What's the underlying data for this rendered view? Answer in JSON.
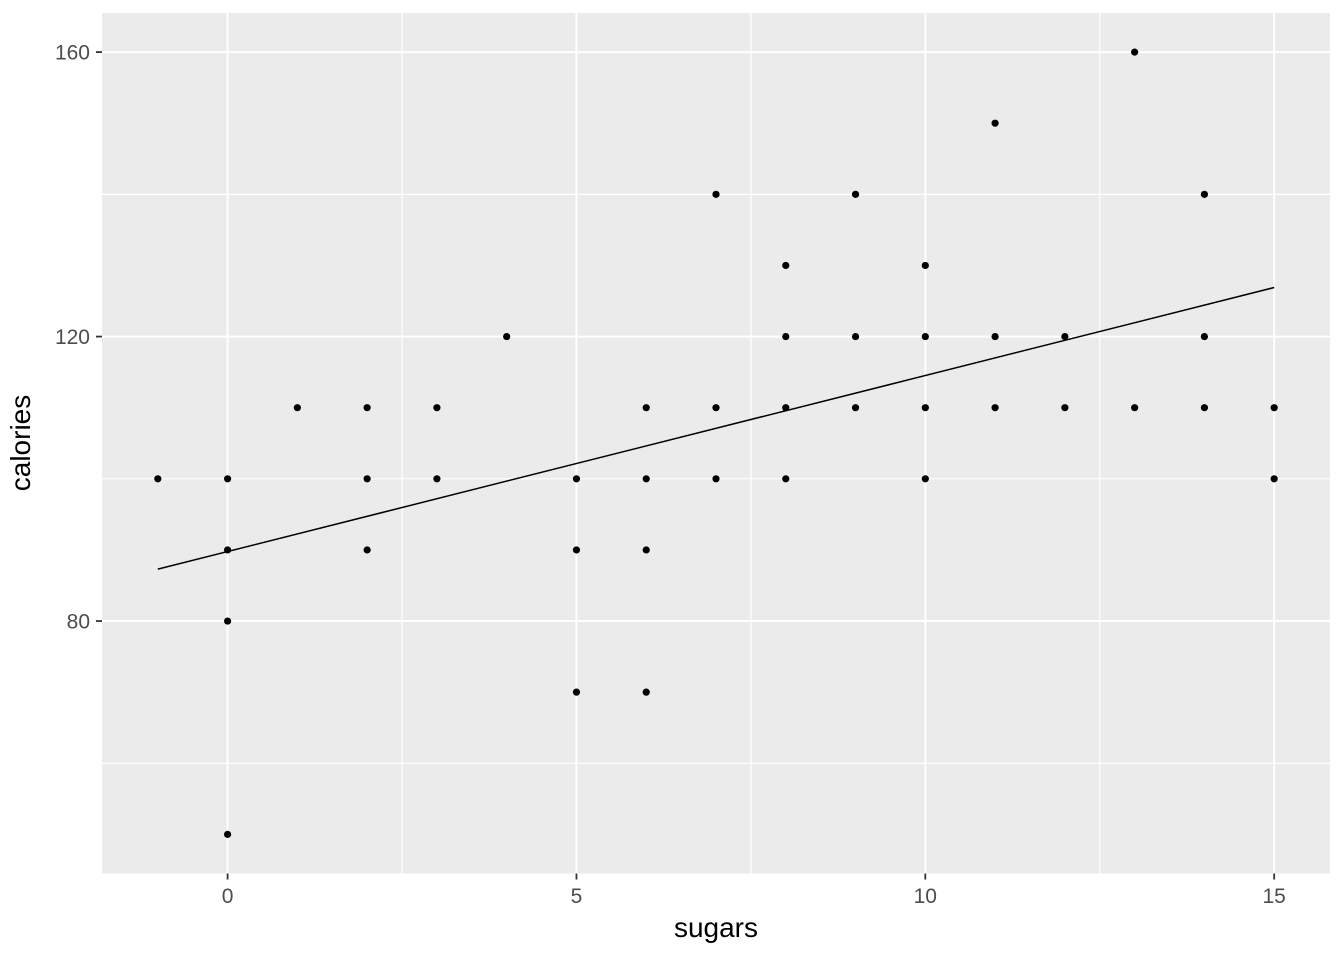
{
  "chart_data": {
    "type": "scatter",
    "title": "",
    "xlabel": "sugars",
    "ylabel": "calories",
    "x_tick_labels": [
      "0",
      "5",
      "10",
      "15"
    ],
    "x_ticks": [
      0,
      5,
      10,
      15
    ],
    "y_tick_labels": [
      "80",
      "120",
      "160"
    ],
    "y_ticks": [
      80,
      120,
      160
    ],
    "x_minor_gridlines": [
      2.5,
      7.5,
      12.5
    ],
    "y_minor_gridlines": [
      60,
      100,
      140
    ],
    "xlim": [
      -1.8,
      15.8
    ],
    "ylim": [
      44.5,
      165.5
    ],
    "grid": "on",
    "legend": "none",
    "points": [
      {
        "x": 0,
        "y": 50
      },
      {
        "x": 5,
        "y": 70
      },
      {
        "x": 6,
        "y": 70
      },
      {
        "x": 0,
        "y": 80
      },
      {
        "x": 0,
        "y": 90
      },
      {
        "x": 2,
        "y": 90
      },
      {
        "x": 5,
        "y": 90
      },
      {
        "x": 6,
        "y": 90
      },
      {
        "x": -1,
        "y": 100
      },
      {
        "x": 0,
        "y": 100
      },
      {
        "x": 2,
        "y": 100
      },
      {
        "x": 3,
        "y": 100
      },
      {
        "x": 5,
        "y": 100
      },
      {
        "x": 6,
        "y": 100
      },
      {
        "x": 7,
        "y": 100
      },
      {
        "x": 8,
        "y": 100
      },
      {
        "x": 10,
        "y": 100
      },
      {
        "x": 15,
        "y": 100
      },
      {
        "x": 1,
        "y": 110
      },
      {
        "x": 2,
        "y": 110
      },
      {
        "x": 3,
        "y": 110
      },
      {
        "x": 6,
        "y": 110
      },
      {
        "x": 7,
        "y": 110
      },
      {
        "x": 8,
        "y": 110
      },
      {
        "x": 9,
        "y": 110
      },
      {
        "x": 10,
        "y": 110
      },
      {
        "x": 11,
        "y": 110
      },
      {
        "x": 12,
        "y": 110
      },
      {
        "x": 13,
        "y": 110
      },
      {
        "x": 14,
        "y": 110
      },
      {
        "x": 15,
        "y": 110
      },
      {
        "x": 4,
        "y": 120
      },
      {
        "x": 8,
        "y": 120
      },
      {
        "x": 9,
        "y": 120
      },
      {
        "x": 10,
        "y": 120
      },
      {
        "x": 11,
        "y": 120
      },
      {
        "x": 12,
        "y": 120
      },
      {
        "x": 14,
        "y": 120
      },
      {
        "x": 8,
        "y": 130
      },
      {
        "x": 10,
        "y": 130
      },
      {
        "x": 7,
        "y": 140
      },
      {
        "x": 9,
        "y": 140
      },
      {
        "x": 14,
        "y": 140
      },
      {
        "x": 11,
        "y": 150
      },
      {
        "x": 13,
        "y": 160
      }
    ],
    "trend_line": {
      "type": "linear",
      "x1": -1,
      "y1": 87.3,
      "x2": 15,
      "y2": 126.9
    },
    "colors": {
      "outer_bg": "#FFFFFF",
      "panel_bg": "#EBEBEB",
      "grid": "#FFFFFF",
      "point": "#000000",
      "trend": "#000000",
      "tick_mark": "#333333",
      "tick_text": "#4D4D4D",
      "axis_title": "#000000"
    }
  }
}
